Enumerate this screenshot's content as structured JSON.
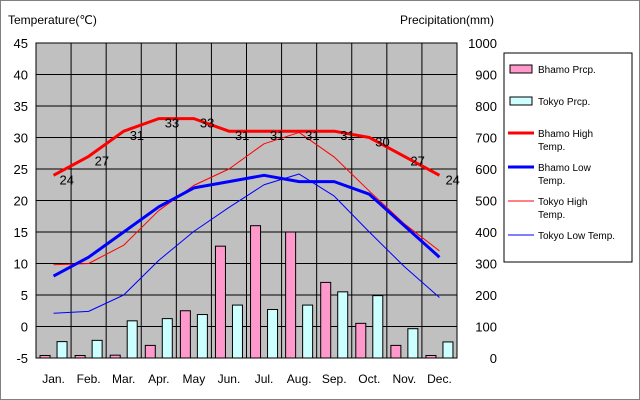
{
  "chart_data": {
    "type": "bar+line",
    "title": "",
    "categories": [
      "Jan.",
      "Feb.",
      "Mar.",
      "Apr.",
      "May",
      "Jun.",
      "Jul.",
      "Aug.",
      "Sep.",
      "Oct.",
      "Nov.",
      "Dec."
    ],
    "left_axis": {
      "label": "Temperature(℃)",
      "min": -5,
      "max": 45,
      "step": 5
    },
    "right_axis": {
      "label": "Precipitation(mm)",
      "min": 0,
      "max": 1000,
      "step": 100
    },
    "grid": true,
    "legend_position": "right",
    "bar_series": [
      {
        "name": "Bhamo Prcp.",
        "color": "#ff99cc",
        "axis": "right",
        "values": [
          8,
          8,
          9,
          40,
          150,
          355,
          420,
          400,
          240,
          110,
          40,
          8
        ]
      },
      {
        "name": "Tokyo Prcp.",
        "color": "#ccffff",
        "axis": "right",
        "values": [
          52,
          56,
          118,
          125,
          138,
          168,
          154,
          168,
          210,
          198,
          93,
          51
        ]
      }
    ],
    "line_series": [
      {
        "name": "Bhamo High Temp.",
        "color": "#ff0000",
        "width": "thick",
        "axis": "left",
        "values": [
          24,
          27,
          31,
          33,
          33,
          31,
          31,
          31,
          31,
          30,
          27,
          24
        ],
        "show_labels": true
      },
      {
        "name": "Bhamo Low Temp.",
        "color": "#0000ff",
        "width": "thick",
        "axis": "left",
        "values": [
          8,
          11,
          15,
          19,
          22,
          23,
          24,
          23,
          23,
          21,
          16,
          11
        ],
        "show_labels": false
      },
      {
        "name": "Tokyo High Temp.",
        "color": "#ff0000",
        "width": "thin",
        "axis": "left",
        "values": [
          9.8,
          10.0,
          12.9,
          18.4,
          22.4,
          25.0,
          29.0,
          30.8,
          26.9,
          21.5,
          16.3,
          12.0
        ],
        "show_labels": false
      },
      {
        "name": "Tokyo Low Temp.",
        "color": "#0000ff",
        "width": "thin",
        "axis": "left",
        "values": [
          2.1,
          2.4,
          5.0,
          10.5,
          15.1,
          18.9,
          22.5,
          24.2,
          20.7,
          15.0,
          9.5,
          4.6
        ],
        "show_labels": false
      }
    ],
    "legend": [
      {
        "kind": "bar",
        "lines": [
          "Bhamo Prcp."
        ],
        "color": "#ff99cc"
      },
      {
        "kind": "bar",
        "lines": [
          "Tokyo Prcp."
        ],
        "color": "#ccffff"
      },
      {
        "kind": "line",
        "lines": [
          "Bhamo High",
          "Temp."
        ],
        "color": "#ff0000",
        "width": "thick"
      },
      {
        "kind": "line",
        "lines": [
          "Bhamo Low",
          "Temp."
        ],
        "color": "#0000ff",
        "width": "thick"
      },
      {
        "kind": "line",
        "lines": [
          "Tokyo High",
          "Temp."
        ],
        "color": "#ff0000",
        "width": "thin"
      },
      {
        "kind": "line",
        "lines": [
          "Tokyo Low Temp."
        ],
        "color": "#0000ff",
        "width": "thin"
      }
    ]
  }
}
